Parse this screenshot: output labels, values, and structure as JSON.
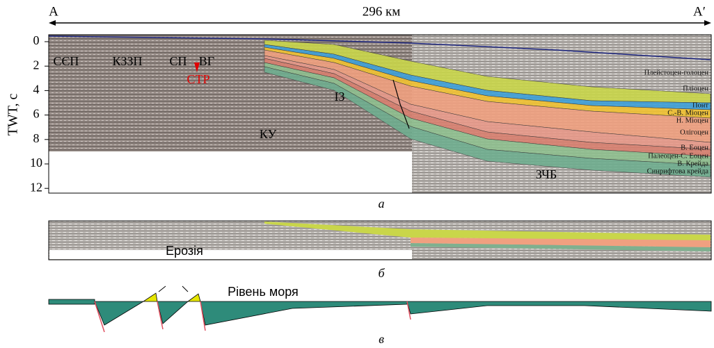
{
  "header": {
    "left_point": "A",
    "right_point": "A′",
    "distance": "296 км"
  },
  "panel_a": {
    "caption": "а",
    "axis_label": "TWT, c",
    "ticks": [
      0,
      2,
      4,
      6,
      8,
      10,
      12
    ],
    "regions": [
      "СЄП",
      "КЗЗП",
      "СП",
      "ВГ",
      "СТР",
      "ІЗ",
      "КУ",
      "ЗЧБ"
    ],
    "layers": [
      "Плейстоцен-голоцен",
      "Пліоцен",
      "Понт",
      "С.-В. Міоцен",
      "Н. Міоцен",
      "Олігоцен",
      "В. Еоцен",
      "Палеоцен-С. Еоцен",
      "В. Крейда",
      "Синрифтова крейда"
    ]
  },
  "panel_b": {
    "caption": "б",
    "label": "Ерозія"
  },
  "panel_c": {
    "caption": "в",
    "label": "Рівень моря"
  }
}
